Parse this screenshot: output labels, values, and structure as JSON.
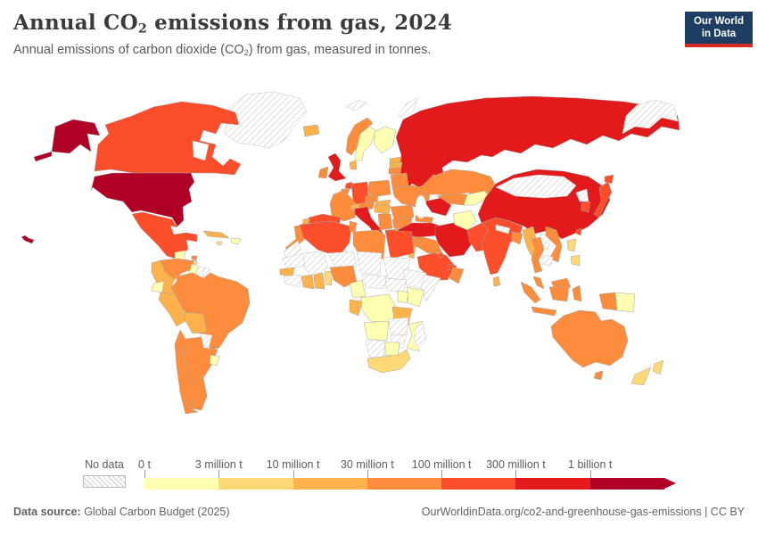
{
  "header": {
    "title_pre": "Annual CO",
    "title_sub": "2",
    "title_post": " emissions from gas, 2024",
    "subtitle_pre": "Annual emissions of carbon dioxide (CO",
    "subtitle_sub": "2",
    "subtitle_post": ") from gas, measured in tonnes."
  },
  "logo": {
    "line1": "Our World",
    "line2": "in Data",
    "bg_color": "#1d3d63",
    "stripe_color": "#d42b20"
  },
  "legend": {
    "no_data_label": "No data"
  },
  "footer": {
    "source_label": "Data source:",
    "source_text": " Global Carbon Budget (2025)",
    "credit_text": "OurWorldinData.org/co2-and-greenhouse-gas-emissions | CC BY"
  },
  "chart_data": {
    "type": "choropleth",
    "title": "Annual CO₂ emissions from gas, 2024",
    "subtitle": "Annual emissions of carbon dioxide (CO₂) from gas, measured in tonnes.",
    "unit": "tonnes",
    "year": "2024",
    "legend_position": "bottom",
    "legend_bins": [
      {
        "threshold_label": "0 t",
        "color": "#FFFFB2"
      },
      {
        "threshold_label": "3 million t",
        "color": "#FED976"
      },
      {
        "threshold_label": "10 million t",
        "color": "#FEB24C"
      },
      {
        "threshold_label": "30 million t",
        "color": "#FD8D3C"
      },
      {
        "threshold_label": "100 million t",
        "color": "#FC4E2A"
      },
      {
        "threshold_label": "300 million t",
        "color": "#E31A1C"
      },
      {
        "threshold_label": "1 billion t",
        "color": "#B10026"
      }
    ],
    "countries": {
      "united_states": 6,
      "canada": 4,
      "greenland": "no_data",
      "mexico": 4,
      "guatemala_belize": 0,
      "honduras_nicaragua": 1,
      "costa_rica": 0,
      "panama": "no_data",
      "cuba": 2,
      "hispaniola": 0,
      "jamaica": 1,
      "trinidad_and_tobago": 3,
      "venezuela": 3,
      "colombia": 2,
      "guyana": 0,
      "suriname": "no_data",
      "french_guiana": "no_data",
      "ecuador": 0,
      "peru": 2,
      "brazil": 3,
      "bolivia": 2,
      "paraguay": "no_data",
      "chile": 3,
      "argentina": 3,
      "uruguay": 0,
      "iceland": 2,
      "norway": 3,
      "sweden": 0,
      "finland": 0,
      "estonia": 2,
      "latvia": 2,
      "lithuania": 3,
      "denmark": 2,
      "united_kingdom": 5,
      "ireland": 3,
      "netherlands": 4,
      "belgium": 3,
      "germany": 4,
      "france": 3,
      "spain": 4,
      "portugal": 2,
      "italy": 5,
      "switzerland": 2,
      "austria": 3,
      "czechia": 3,
      "poland": 3,
      "belarus": 3,
      "ukraine": 3,
      "slovakia": 2,
      "hungary": 2,
      "romania": 3,
      "serbia": 3,
      "bulgaria": 3,
      "greece": 3,
      "russia": 5,
      "svalbard": "no_data",
      "novaya_zemlya": "no_data",
      "arctic_region_ne": "no_data",
      "kazakhstan": 3,
      "uzbekistan": 3,
      "kyrgyzstan_tajikistan": 0,
      "turkmenistan": 5,
      "georgia_azerbaijan": 3,
      "turkey": 5,
      "syria": 3,
      "iraq": 3,
      "iran": 5,
      "jordan_israel": 2,
      "saudi_arabia": 4,
      "kuwait": 4,
      "uae": 4,
      "oman": 3,
      "yemen": 0,
      "afghanistan": 0,
      "pakistan": 4,
      "india": 4,
      "nepal": "no_data",
      "bangladesh": 3,
      "sri_lanka": 2,
      "china": 5,
      "mongolia": "no_data",
      "north_korea": "no_data",
      "south_korea": 4,
      "japan": 4,
      "taiwan": 4,
      "myanmar": 2,
      "laos": "no_data",
      "thailand": 3,
      "cambodia": "no_data",
      "vietnam": 3,
      "malaysia": 3,
      "indonesia": 3,
      "philippines": 1,
      "papua_new_guinea": 0,
      "australia": 3,
      "new_zealand": 1,
      "morocco": 3,
      "western_sahara": "no_data",
      "algeria": 4,
      "tunisia": 3,
      "libya": 3,
      "egypt": 4,
      "mauritania": "no_data",
      "senegal": 2,
      "mali": "no_data",
      "guinea_region": "no_data",
      "ivory_coast": 2,
      "ghana": 2,
      "togo_benin": 1,
      "niger": "no_data",
      "nigeria": 3,
      "chad": "no_data",
      "sudan": "no_data",
      "cameroon": 0,
      "central_african_republic": "no_data",
      "south_sudan": "no_data",
      "ethiopia": "no_data",
      "somalia": "no_data",
      "kenya": 0,
      "uganda": 0,
      "dr_congo": 0,
      "gabon_congo": 2,
      "tanzania": 2,
      "angola": 0,
      "zambia": "no_data",
      "mozambique": 0,
      "zimbabwe": "no_data",
      "namibia": "no_data",
      "botswana": 0,
      "south_africa": 1,
      "madagascar": "no_data"
    }
  }
}
